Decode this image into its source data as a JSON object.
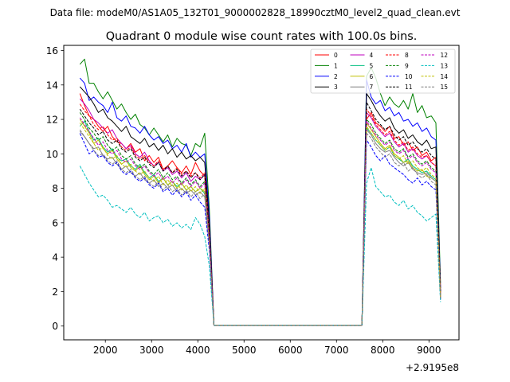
{
  "suptitle": "Data file: modeM0/AS1A05_132T01_9000002828_18990cztM0_level2_quad_clean.evt",
  "chart_data": {
    "type": "line",
    "title": "Quadrant 0 module wise count rates with 100.0s bins.",
    "xlabel": "",
    "ylabel": "",
    "offset_label": "+2.9195e8",
    "xlim": [
      1100,
      9650
    ],
    "ylim": [
      -0.8,
      16.3
    ],
    "xticks": [
      2000,
      3000,
      4000,
      5000,
      6000,
      7000,
      8000,
      9000
    ],
    "yticks": [
      0,
      2,
      4,
      6,
      8,
      10,
      12,
      14,
      16
    ],
    "legend_position": "top-right",
    "gap": {
      "start": 4350,
      "end": 7550
    },
    "segment1_x": [
      1450,
      1550,
      1650,
      1750,
      1850,
      1950,
      2050,
      2150,
      2250,
      2350,
      2450,
      2550,
      2650,
      2750,
      2850,
      2950,
      3050,
      3150,
      3250,
      3350,
      3450,
      3550,
      3650,
      3750,
      3850,
      3950,
      4050,
      4150,
      4250,
      4350
    ],
    "segment2_x": [
      7550,
      7650,
      7750,
      7850,
      7950,
      8050,
      8150,
      8250,
      8350,
      8450,
      8550,
      8650,
      8750,
      8850,
      8950,
      9050,
      9150,
      9250
    ],
    "gap_level": 0.05,
    "series": [
      {
        "name": "0",
        "color": "#ff0000",
        "dash": false,
        "values1": [
          13.5,
          12.8,
          12.2,
          12.0,
          11.6,
          11.3,
          11.6,
          11.0,
          10.7,
          10.6,
          10.3,
          10.6,
          10.1,
          10.3,
          9.6,
          9.9,
          9.5,
          9.8,
          9.1,
          9.3,
          9.6,
          9.2,
          8.9,
          9.3,
          8.8,
          9.5,
          9.0,
          8.7,
          5.0,
          0.05
        ],
        "values2": [
          0.05,
          12.0,
          12.4,
          11.8,
          11.6,
          11.3,
          11.6,
          10.9,
          11.0,
          10.5,
          10.7,
          10.2,
          10.4,
          9.9,
          10.1,
          9.6,
          9.8,
          2.3
        ]
      },
      {
        "name": "1",
        "color": "#008000",
        "dash": false,
        "values1": [
          15.2,
          15.5,
          14.1,
          14.1,
          13.6,
          13.2,
          13.6,
          13.1,
          12.6,
          12.9,
          12.4,
          12.0,
          12.3,
          11.7,
          11.5,
          11.1,
          11.5,
          11.1,
          10.7,
          11.1,
          10.4,
          10.9,
          10.6,
          10.5,
          9.9,
          10.6,
          10.4,
          11.2,
          6.8,
          0.05
        ],
        "values2": [
          0.05,
          14.5,
          15.0,
          14.4,
          13.5,
          12.8,
          13.3,
          12.9,
          12.7,
          13.1,
          12.6,
          13.5,
          12.4,
          12.8,
          12.1,
          12.2,
          11.8,
          2.5
        ]
      },
      {
        "name": "2",
        "color": "#0000ff",
        "dash": false,
        "values1": [
          14.4,
          14.1,
          13.1,
          13.3,
          13.0,
          12.8,
          12.4,
          13.0,
          12.1,
          11.9,
          12.2,
          11.6,
          11.5,
          11.2,
          11.6,
          11.1,
          10.8,
          11.0,
          10.6,
          10.8,
          10.3,
          10.5,
          10.1,
          10.6,
          9.8,
          10.1,
          9.8,
          10.0,
          6.4,
          0.05
        ],
        "values2": [
          0.05,
          14.3,
          13.3,
          12.9,
          13.1,
          12.5,
          12.7,
          12.2,
          12.4,
          11.9,
          12.0,
          11.6,
          11.8,
          11.3,
          11.5,
          11.0,
          10.8,
          2.2
        ]
      },
      {
        "name": "3",
        "color": "#000000",
        "dash": false,
        "values1": [
          13.9,
          13.6,
          13.3,
          12.9,
          12.4,
          12.6,
          12.1,
          11.9,
          11.6,
          11.3,
          11.6,
          11.0,
          10.8,
          10.6,
          10.9,
          10.4,
          10.6,
          10.2,
          10.5,
          10.0,
          10.3,
          9.8,
          10.1,
          9.7,
          9.9,
          9.6,
          9.8,
          9.5,
          6.0,
          0.05
        ],
        "values2": [
          0.05,
          13.5,
          13.1,
          12.6,
          12.2,
          11.9,
          12.1,
          11.5,
          11.2,
          11.4,
          10.9,
          11.1,
          10.7,
          10.5,
          10.8,
          10.3,
          10.4,
          2.0
        ]
      },
      {
        "name": "4",
        "color": "#bf00bf",
        "dash": false,
        "values1": [
          13.2,
          12.9,
          12.5,
          12.0,
          11.8,
          11.5,
          11.2,
          11.4,
          10.9,
          10.6,
          10.3,
          10.5,
          10.0,
          9.8,
          10.1,
          9.6,
          9.3,
          9.5,
          9.0,
          9.2,
          8.8,
          9.0,
          8.6,
          8.9,
          8.4,
          8.7,
          8.5,
          8.8,
          5.4,
          0.05
        ],
        "values2": [
          0.05,
          12.4,
          12.1,
          11.6,
          11.3,
          11.0,
          11.2,
          10.7,
          10.4,
          10.6,
          10.1,
          10.3,
          9.9,
          9.7,
          9.9,
          9.5,
          9.3,
          1.9
        ]
      },
      {
        "name": "5",
        "color": "#00bf7f",
        "dash": false,
        "values1": [
          11.6,
          11.9,
          11.3,
          10.8,
          10.9,
          10.4,
          10.1,
          10.3,
          9.8,
          9.6,
          9.7,
          9.3,
          9.1,
          9.4,
          8.9,
          8.6,
          8.8,
          8.4,
          8.6,
          8.2,
          8.4,
          8.1,
          8.3,
          7.9,
          8.1,
          7.8,
          8.0,
          7.7,
          4.9,
          0.05
        ],
        "values2": [
          0.05,
          11.5,
          11.2,
          10.8,
          10.5,
          10.2,
          10.4,
          9.9,
          9.7,
          9.5,
          9.7,
          9.3,
          9.1,
          8.9,
          9.0,
          8.7,
          8.5,
          1.6
        ]
      },
      {
        "name": "6",
        "color": "#bfbf00",
        "dash": false,
        "values1": [
          12.0,
          11.6,
          11.2,
          10.6,
          10.8,
          10.3,
          10.0,
          10.2,
          9.7,
          9.4,
          9.6,
          9.2,
          9.0,
          9.3,
          8.8,
          8.5,
          8.7,
          8.3,
          8.6,
          8.2,
          8.4,
          8.0,
          8.3,
          7.9,
          8.1,
          7.8,
          8.0,
          7.8,
          4.8,
          0.05
        ],
        "values2": [
          0.05,
          11.8,
          11.4,
          11.0,
          10.6,
          10.3,
          10.5,
          10.0,
          9.8,
          9.5,
          9.6,
          9.2,
          9.0,
          9.1,
          8.7,
          8.6,
          8.4,
          1.7
        ]
      },
      {
        "name": "7",
        "color": "#7f7f7f",
        "dash": false,
        "values1": [
          11.3,
          11.0,
          10.6,
          10.3,
          10.4,
          9.9,
          9.7,
          9.8,
          9.4,
          9.1,
          9.3,
          8.9,
          8.7,
          8.9,
          8.5,
          8.3,
          8.5,
          8.1,
          8.3,
          8.0,
          8.2,
          7.8,
          8.0,
          7.7,
          7.9,
          7.6,
          7.8,
          7.5,
          4.7,
          0.05
        ],
        "values2": [
          0.05,
          11.4,
          11.1,
          10.6,
          10.3,
          10.1,
          10.2,
          9.8,
          9.5,
          9.3,
          9.5,
          9.1,
          8.9,
          8.8,
          8.9,
          8.6,
          8.4,
          1.6
        ]
      },
      {
        "name": "8",
        "color": "#ff0000",
        "dash": true,
        "values1": [
          12.9,
          12.5,
          12.2,
          11.7,
          11.4,
          11.6,
          11.1,
          10.8,
          10.9,
          10.4,
          10.2,
          10.4,
          9.9,
          9.7,
          9.9,
          9.5,
          9.3,
          9.6,
          9.1,
          9.3,
          8.9,
          9.2,
          8.8,
          9.0,
          8.7,
          8.9,
          8.6,
          8.9,
          5.3,
          0.05
        ],
        "values2": [
          0.05,
          12.6,
          12.2,
          11.7,
          11.4,
          11.1,
          11.3,
          10.8,
          10.5,
          10.7,
          10.2,
          10.4,
          10.0,
          9.8,
          9.9,
          9.5,
          9.3,
          1.9
        ]
      },
      {
        "name": "9",
        "color": "#008000",
        "dash": true,
        "values1": [
          12.4,
          12.0,
          11.5,
          11.2,
          10.8,
          11.0,
          10.5,
          10.2,
          10.4,
          9.9,
          9.7,
          9.9,
          9.4,
          9.2,
          9.4,
          9.0,
          8.8,
          9.1,
          8.6,
          8.9,
          8.5,
          8.7,
          8.3,
          8.6,
          8.2,
          8.5,
          8.1,
          8.4,
          5.1,
          0.05
        ],
        "values2": [
          0.05,
          12.0,
          11.7,
          11.2,
          10.9,
          10.6,
          10.8,
          10.3,
          10.1,
          10.3,
          9.8,
          10.0,
          9.6,
          9.4,
          9.6,
          9.2,
          9.0,
          1.8
        ]
      },
      {
        "name": "10",
        "color": "#0000ff",
        "dash": true,
        "values1": [
          11.2,
          10.6,
          10.0,
          10.2,
          9.8,
          9.9,
          9.5,
          9.3,
          9.5,
          9.0,
          8.8,
          9.0,
          8.6,
          8.4,
          8.6,
          8.2,
          8.0,
          8.3,
          7.8,
          8.0,
          7.6,
          7.9,
          7.5,
          7.8,
          7.3,
          7.6,
          7.2,
          6.9,
          4.4,
          0.05
        ],
        "values2": [
          0.05,
          10.8,
          10.4,
          9.9,
          9.6,
          9.9,
          9.4,
          9.2,
          9.0,
          8.8,
          8.5,
          8.3,
          8.6,
          8.2,
          8.4,
          8.1,
          7.9,
          1.5
        ]
      },
      {
        "name": "11",
        "color": "#000000",
        "dash": true,
        "values1": [
          12.6,
          12.2,
          11.8,
          11.5,
          11.1,
          11.3,
          10.8,
          10.6,
          10.8,
          10.3,
          10.1,
          10.3,
          9.8,
          9.6,
          9.8,
          9.4,
          9.2,
          9.5,
          9.0,
          9.3,
          8.9,
          9.1,
          8.7,
          9.0,
          8.6,
          8.9,
          8.5,
          8.8,
          5.3,
          0.05
        ],
        "values2": [
          0.05,
          13.0,
          12.5,
          12.0,
          11.7,
          11.4,
          11.6,
          11.1,
          10.8,
          11.0,
          10.5,
          10.7,
          10.3,
          10.1,
          10.3,
          9.9,
          9.7,
          2.0
        ]
      },
      {
        "name": "12",
        "color": "#bf00bf",
        "dash": true,
        "values1": [
          12.1,
          11.7,
          11.3,
          10.9,
          10.5,
          10.7,
          10.2,
          10.0,
          10.2,
          9.7,
          9.5,
          9.7,
          9.3,
          9.1,
          9.3,
          8.9,
          8.7,
          8.9,
          8.5,
          8.7,
          8.3,
          8.6,
          8.2,
          8.5,
          8.1,
          8.4,
          8.0,
          8.3,
          5.0,
          0.05
        ],
        "values2": [
          0.05,
          11.9,
          11.5,
          11.1,
          10.8,
          10.5,
          10.7,
          10.2,
          10.0,
          10.2,
          9.7,
          9.9,
          9.5,
          9.3,
          9.5,
          9.1,
          8.9,
          1.7
        ]
      },
      {
        "name": "13",
        "color": "#00bfbf",
        "dash": true,
        "values1": [
          9.3,
          8.8,
          8.3,
          7.9,
          7.5,
          7.6,
          7.3,
          6.9,
          7.0,
          6.8,
          6.6,
          6.9,
          6.5,
          6.3,
          6.6,
          6.1,
          6.3,
          6.4,
          6.0,
          6.2,
          5.8,
          6.0,
          5.7,
          5.9,
          5.6,
          6.3,
          5.9,
          5.2,
          3.5,
          0.05
        ],
        "values2": [
          0.05,
          8.3,
          9.2,
          8.1,
          7.8,
          7.5,
          7.6,
          7.2,
          7.0,
          7.3,
          6.8,
          7.0,
          6.6,
          6.4,
          6.1,
          6.3,
          6.5,
          1.4
        ]
      },
      {
        "name": "14",
        "color": "#bfbf00",
        "dash": true,
        "values1": [
          11.8,
          11.4,
          11.0,
          10.6,
          10.2,
          10.4,
          9.9,
          9.7,
          9.9,
          9.4,
          9.2,
          9.4,
          9.0,
          8.8,
          9.0,
          8.6,
          8.4,
          8.7,
          8.2,
          8.5,
          8.1,
          8.3,
          7.9,
          8.2,
          7.8,
          8.1,
          7.7,
          8.0,
          4.9,
          0.05
        ],
        "values2": [
          0.05,
          11.6,
          11.2,
          10.8,
          10.5,
          10.2,
          10.4,
          9.9,
          9.7,
          9.9,
          9.4,
          9.6,
          9.2,
          9.0,
          9.2,
          8.8,
          8.6,
          1.7
        ]
      },
      {
        "name": "15",
        "color": "#7f7f7f",
        "dash": true,
        "values1": [
          11.4,
          11.0,
          10.6,
          10.2,
          9.9,
          10.0,
          9.6,
          9.4,
          9.6,
          9.1,
          8.9,
          9.1,
          8.7,
          8.5,
          8.7,
          8.3,
          8.1,
          8.4,
          7.9,
          8.2,
          7.8,
          8.0,
          7.6,
          7.9,
          7.5,
          7.8,
          7.4,
          7.7,
          4.7,
          0.05
        ],
        "values2": [
          0.05,
          11.2,
          10.9,
          10.4,
          10.1,
          9.8,
          10.0,
          9.5,
          9.3,
          9.5,
          9.0,
          9.2,
          8.8,
          8.6,
          8.8,
          8.4,
          8.2,
          1.6
        ]
      }
    ]
  }
}
